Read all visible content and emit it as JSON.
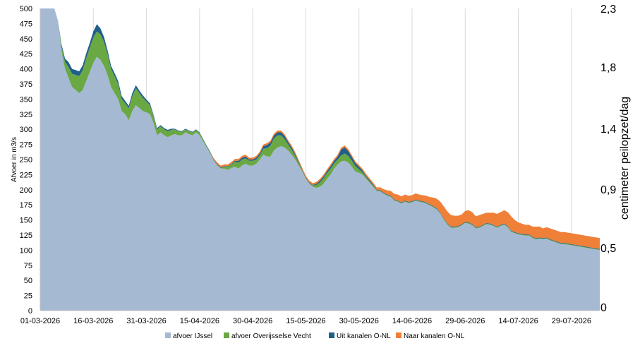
{
  "chart_data": {
    "type": "area",
    "stacked": true,
    "ylabel": "Afvoer in m3/s",
    "ylabel_right": "centimeter peilopzet/dag",
    "ylim": [
      0,
      500
    ],
    "yticks": [
      "0",
      "25",
      "50",
      "75",
      "100",
      "125",
      "150",
      "175",
      "200",
      "225",
      "250",
      "275",
      "300",
      "325",
      "350",
      "375",
      "400",
      "425",
      "450",
      "475",
      "500"
    ],
    "y2ticks": [
      "0",
      "0,5",
      "0,9",
      "1,4",
      "1,8",
      "2,3"
    ],
    "xticks": [
      "01-03-2026",
      "16-03-2026",
      "31-03-2026",
      "15-04-2026",
      "30-04-2026",
      "15-05-2026",
      "30-05-2026",
      "14-06-2026",
      "29-06-2026",
      "14-07-2026",
      "29-07-2026"
    ],
    "grid": "vertical",
    "legend_position": "bottom",
    "x_days": [
      0,
      1,
      2,
      3,
      4,
      5,
      6,
      7,
      8,
      9,
      10,
      11,
      12,
      13,
      14,
      15,
      16,
      17,
      18,
      19,
      20,
      21,
      22,
      23,
      24,
      25,
      26,
      27,
      28,
      29,
      30,
      31,
      32,
      33,
      34,
      35,
      36,
      37,
      38,
      39,
      40,
      41,
      42,
      43,
      44,
      45,
      46,
      47,
      48,
      49,
      50,
      51,
      52,
      53,
      54,
      55,
      56,
      57,
      58,
      59,
      60,
      61,
      62,
      63,
      64,
      65,
      66,
      67,
      68,
      69,
      70,
      71,
      72,
      73,
      74,
      75,
      76,
      77,
      78,
      79,
      80,
      81,
      82,
      83,
      84,
      85,
      86,
      87,
      88,
      89,
      90,
      91,
      92,
      93,
      94,
      95,
      96,
      97,
      98,
      99,
      100,
      101,
      102,
      103,
      104,
      105,
      106,
      107,
      108,
      109,
      110,
      111,
      112,
      113,
      114,
      115,
      116,
      117,
      118,
      119,
      120,
      121,
      122,
      123,
      124,
      125,
      126,
      127,
      128,
      129,
      130,
      131,
      132,
      133,
      134,
      135,
      136,
      137,
      138,
      139,
      140,
      141,
      142,
      143,
      144,
      145,
      146,
      147,
      148,
      149,
      150,
      151,
      152,
      153,
      154,
      155,
      156,
      157,
      158
    ],
    "series": [
      {
        "name": "afvoer IJssel",
        "color": "#a5b9d3",
        "values": [
          500,
          500,
          500,
          500,
          500,
          480,
          430,
          400,
          385,
          370,
          365,
          360,
          365,
          380,
          395,
          410,
          420,
          415,
          405,
          390,
          370,
          360,
          350,
          330,
          325,
          315,
          330,
          340,
          335,
          330,
          328,
          325,
          310,
          290,
          295,
          290,
          287,
          290,
          292,
          290,
          290,
          295,
          292,
          290,
          295,
          290,
          280,
          270,
          260,
          248,
          240,
          235,
          235,
          233,
          236,
          238,
          235,
          240,
          243,
          240,
          240,
          243,
          250,
          258,
          255,
          255,
          265,
          270,
          272,
          270,
          265,
          258,
          250,
          240,
          230,
          218,
          210,
          205,
          203,
          205,
          210,
          218,
          225,
          235,
          242,
          247,
          248,
          245,
          238,
          230,
          228,
          225,
          218,
          212,
          205,
          198,
          197,
          193,
          190,
          188,
          182,
          180,
          177,
          180,
          178,
          179,
          182,
          180,
          179,
          177,
          174,
          171,
          167,
          160,
          150,
          142,
          137,
          137,
          138,
          141,
          145,
          144,
          141,
          136,
          137,
          140,
          143,
          142,
          140,
          137,
          140,
          142,
          138,
          130,
          128,
          126,
          125,
          124,
          124,
          120,
          118,
          119,
          118,
          119,
          116,
          114,
          112,
          110,
          110,
          109,
          108,
          107,
          106,
          105,
          104,
          103,
          102,
          101,
          100
        ],
        "labels": []
      },
      {
        "name": "afvoer Overijsselse Vecht",
        "color": "#6aa844",
        "values": [
          0,
          0,
          0,
          0,
          0,
          0,
          8,
          12,
          18,
          22,
          25,
          28,
          33,
          38,
          40,
          42,
          42,
          42,
          40,
          35,
          30,
          28,
          25,
          20,
          18,
          20,
          25,
          28,
          25,
          22,
          18,
          15,
          12,
          10,
          10,
          10,
          10,
          9,
          8,
          7,
          6,
          5,
          5,
          5,
          4,
          4,
          3,
          2,
          2,
          1,
          1,
          1,
          3,
          5,
          6,
          8,
          10,
          10,
          9,
          8,
          8,
          7,
          7,
          10,
          14,
          18,
          20,
          20,
          18,
          14,
          10,
          8,
          6,
          4,
          2,
          1,
          1,
          2,
          5,
          7,
          9,
          10,
          10,
          9,
          8,
          10,
          12,
          11,
          10,
          9,
          6,
          4,
          3,
          2,
          2,
          1,
          1,
          1,
          1,
          1,
          1,
          1,
          1,
          1,
          1,
          1,
          1,
          1,
          1,
          1,
          1,
          1,
          1,
          1,
          1,
          1,
          1,
          1,
          1,
          1,
          1,
          1,
          1,
          1,
          1,
          1,
          1,
          1,
          1,
          1,
          1,
          1,
          1,
          1,
          1,
          1,
          1,
          1,
          1,
          1,
          1,
          1,
          1,
          1,
          1,
          1,
          1,
          1,
          1,
          1,
          1,
          1,
          1,
          1,
          1,
          1,
          1,
          1,
          1
        ]
      },
      {
        "name": "Uit kanalen O-NL",
        "color": "#1f5f8a",
        "values": [
          0,
          0,
          0,
          0,
          0,
          0,
          3,
          5,
          8,
          8,
          8,
          8,
          8,
          8,
          8,
          10,
          12,
          10,
          8,
          6,
          5,
          5,
          5,
          5,
          4,
          4,
          5,
          5,
          4,
          4,
          3,
          3,
          2,
          2,
          2,
          2,
          2,
          2,
          1,
          1,
          1,
          1,
          1,
          1,
          1,
          1,
          1,
          1,
          1,
          1,
          1,
          1,
          1,
          1,
          1,
          2,
          3,
          3,
          3,
          2,
          2,
          3,
          3,
          4,
          5,
          5,
          5,
          5,
          5,
          5,
          4,
          4,
          3,
          2,
          1,
          1,
          1,
          1,
          2,
          3,
          3,
          3,
          4,
          4,
          5,
          10,
          10,
          8,
          6,
          5,
          4,
          3,
          2,
          2,
          2,
          1,
          1,
          1,
          1,
          1,
          1,
          1,
          1,
          1,
          1,
          1,
          1,
          1,
          1,
          1,
          1,
          1,
          1,
          1,
          1,
          1,
          1,
          1,
          1,
          1,
          1,
          1,
          1,
          1,
          1,
          1,
          1,
          1,
          1,
          1,
          1,
          1,
          1,
          1,
          1,
          1,
          1,
          1,
          1,
          1,
          1,
          1,
          1,
          1,
          1,
          1,
          1,
          1,
          1,
          1,
          1,
          1,
          1,
          1,
          1,
          1,
          1,
          1,
          1
        ]
      },
      {
        "name": "Naar kanalen O-NL",
        "color": "#f07f38",
        "values": [
          0,
          0,
          0,
          0,
          0,
          0,
          0,
          0,
          0,
          0,
          0,
          0,
          0,
          0,
          0,
          0,
          0,
          0,
          0,
          0,
          0,
          0,
          0,
          0,
          0,
          0,
          0,
          0,
          0,
          0,
          0,
          0,
          0,
          0,
          0,
          0,
          0,
          0,
          0,
          0,
          0,
          0,
          0,
          0,
          0,
          0,
          0,
          0,
          0,
          2,
          3,
          3,
          3,
          3,
          3,
          3,
          3,
          3,
          3,
          3,
          3,
          3,
          3,
          3,
          3,
          3,
          3,
          3,
          3,
          3,
          3,
          3,
          3,
          3,
          3,
          3,
          3,
          3,
          3,
          3,
          3,
          3,
          3,
          3,
          3,
          3,
          3,
          3,
          3,
          3,
          3,
          3,
          3,
          3,
          3,
          4,
          5,
          6,
          7,
          8,
          9,
          10,
          10,
          10,
          10,
          10,
          10,
          10,
          10,
          11,
          12,
          14,
          16,
          18,
          20,
          20,
          19,
          18,
          17,
          16,
          18,
          20,
          20,
          18,
          19,
          18,
          17,
          18,
          20,
          21,
          21,
          22,
          23,
          24,
          20,
          18,
          17,
          16,
          16,
          17,
          19,
          18,
          16,
          17,
          18,
          18,
          18,
          18,
          18,
          18,
          18,
          18,
          18,
          18,
          18,
          18,
          18,
          18,
          18
        ]
      }
    ]
  }
}
